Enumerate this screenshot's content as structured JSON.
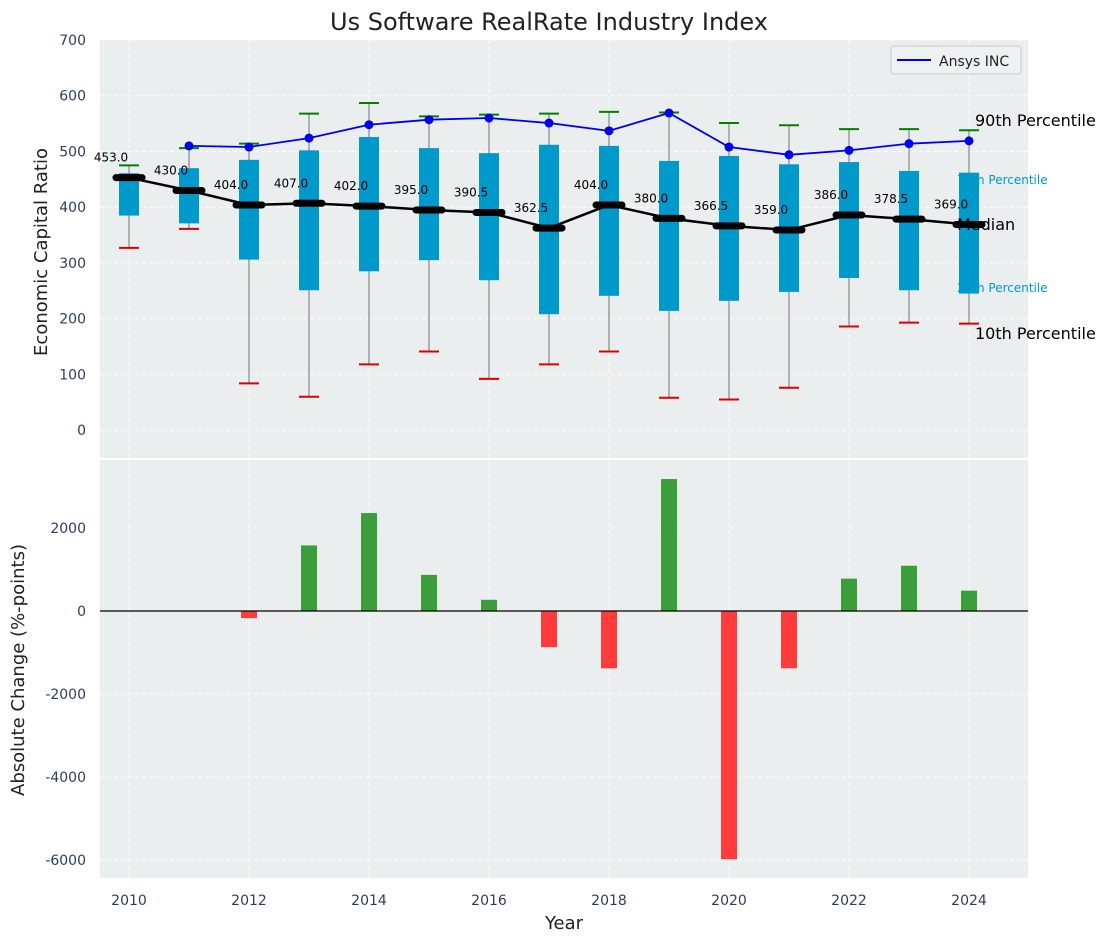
{
  "chart_data": [
    {
      "type": "box",
      "title": "Us Software RealRate Industry Index",
      "xlabel": "",
      "ylabel": "Economic Capital Ratio",
      "ylim": [
        -50,
        700
      ],
      "yticks": [
        0,
        100,
        200,
        300,
        400,
        500,
        600,
        700
      ],
      "grid": true,
      "legend_position": "top-right",
      "years": [
        2010,
        2011,
        2012,
        2013,
        2014,
        2015,
        2016,
        2017,
        2018,
        2019,
        2020,
        2021,
        2022,
        2023,
        2024
      ],
      "p10": [
        327,
        361,
        84,
        60,
        118,
        141,
        92,
        118,
        141,
        58,
        55,
        76,
        186,
        193,
        191
      ],
      "p25": [
        385,
        371,
        306,
        251,
        285,
        305,
        269,
        208,
        241,
        214,
        232,
        248,
        273,
        251,
        245
      ],
      "median": [
        453.0,
        430.0,
        404.0,
        407.0,
        402.0,
        395.0,
        390.5,
        362.5,
        404.0,
        380.0,
        366.5,
        359.0,
        386.0,
        378.5,
        369.0
      ],
      "median_labels": [
        "453.0",
        "430.0",
        "404.0",
        "407.0",
        "402.0",
        "395.0",
        "390.5",
        "362.5",
        "404.0",
        "380.0",
        "366.5",
        "359.0",
        "386.0",
        "378.5",
        "369.0"
      ],
      "p75": [
        461,
        470,
        485,
        502,
        526,
        506,
        497,
        512,
        510,
        483,
        492,
        477,
        481,
        465,
        462
      ],
      "p90": [
        475,
        506,
        514,
        568,
        587,
        563,
        566,
        568,
        571,
        570,
        551,
        547,
        540,
        540,
        538
      ],
      "company": {
        "name": "Ansys INC",
        "years": [
          2011,
          2012,
          2013,
          2014,
          2015,
          2016,
          2017,
          2018,
          2019,
          2020,
          2021,
          2022,
          2023,
          2024
        ],
        "values": [
          510,
          508,
          524,
          548,
          557,
          560,
          551,
          537,
          569,
          508,
          494,
          502,
          514,
          519
        ]
      },
      "annotations": {
        "p90": "90th Percentile",
        "p75": "75th Percentile",
        "median": "Median",
        "p25": "25th Percentile",
        "p10": "10th Percentile"
      },
      "colors": {
        "box": "#0099cc",
        "median": "#000000",
        "company": "#0000ee",
        "p90_cap": "#008000",
        "p10_cap": "#dd0000",
        "background": "#eaeeee"
      }
    },
    {
      "type": "bar",
      "xlabel": "Year",
      "ylabel": "Absolute Change (%-points)",
      "ylim": [
        -6500,
        3200
      ],
      "yticks": [
        -6000,
        -4000,
        -2000,
        0,
        2000
      ],
      "xticks": [
        2010,
        2012,
        2014,
        2016,
        2018,
        2020,
        2022,
        2024
      ],
      "grid": true,
      "years": [
        2012,
        2013,
        2014,
        2015,
        2016,
        2017,
        2018,
        2019,
        2020,
        2021,
        2022,
        2023,
        2024
      ],
      "values": [
        -170,
        1580,
        2360,
        870,
        270,
        -870,
        -1380,
        3180,
        -5980,
        -1380,
        780,
        1090,
        490
      ],
      "colors": {
        "positive": "#3a9e3a",
        "negative": "#ff3b3b"
      }
    }
  ]
}
